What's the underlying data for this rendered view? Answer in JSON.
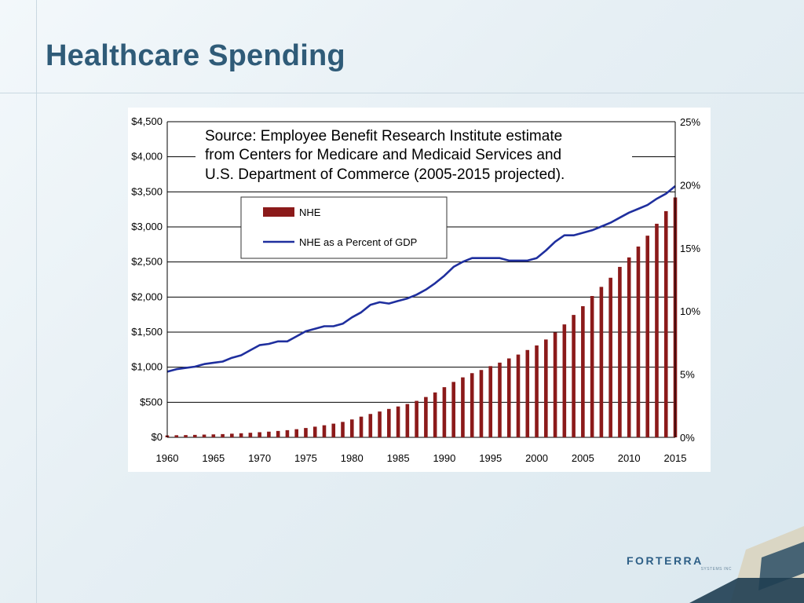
{
  "slide": {
    "title": "Healthcare Spending"
  },
  "logo": {
    "name": "FORTERRA",
    "sub": "SYSTEMS INC"
  },
  "colors": {
    "title": "#2f5b78",
    "bar": "#8b1a1a",
    "line": "#1f2f9e",
    "logo": "#2d5f86"
  },
  "chart_data": {
    "type": "bar",
    "source_note": [
      "Source: Employee Benefit Research Institute estimate",
      "from Centers for Medicare and Medicaid Services and",
      "U.S. Department of Commerce (2005-2015 projected)."
    ],
    "x": [
      1960,
      1961,
      1962,
      1963,
      1964,
      1965,
      1966,
      1967,
      1968,
      1969,
      1970,
      1971,
      1972,
      1973,
      1974,
      1975,
      1976,
      1977,
      1978,
      1979,
      1980,
      1981,
      1982,
      1983,
      1984,
      1985,
      1986,
      1987,
      1988,
      1989,
      1990,
      1991,
      1992,
      1993,
      1994,
      1995,
      1996,
      1997,
      1998,
      1999,
      2000,
      2001,
      2002,
      2003,
      2004,
      2005,
      2006,
      2007,
      2008,
      2009,
      2010,
      2011,
      2012,
      2013,
      2014,
      2015
    ],
    "x_ticks": [
      "1960",
      "1965",
      "1970",
      "1975",
      "1980",
      "1985",
      "1990",
      "1995",
      "2000",
      "2005",
      "2010",
      "2015"
    ],
    "y_left_ticks": [
      "$0",
      "$500",
      "$1,000",
      "$1,500",
      "$2,000",
      "$2,500",
      "$3,000",
      "$3,500",
      "$4,000",
      "$4,500"
    ],
    "y_left_range": [
      0,
      4500
    ],
    "y_right_ticks": [
      "0%",
      "5%",
      "10%",
      "15%",
      "20%",
      "25%"
    ],
    "y_right_range": [
      0,
      25
    ],
    "grid": true,
    "legend_position": "top-left",
    "series": [
      {
        "name": "NHE",
        "type": "bar",
        "axis": "left",
        "values": [
          27,
          30,
          32,
          35,
          39,
          42,
          46,
          52,
          58,
          65,
          73,
          81,
          91,
          102,
          116,
          133,
          152,
          172,
          195,
          220,
          255,
          295,
          333,
          368,
          405,
          440,
          475,
          520,
          575,
          640,
          715,
          790,
          855,
          915,
          960,
          1015,
          1065,
          1125,
          1180,
          1245,
          1310,
          1395,
          1495,
          1610,
          1745,
          1870,
          2015,
          2145,
          2275,
          2430,
          2565,
          2720,
          2875,
          3045,
          3225,
          3420
        ]
      },
      {
        "name": "NHE as a Percent of GDP",
        "type": "line",
        "axis": "right",
        "values": [
          5.2,
          5.4,
          5.5,
          5.6,
          5.8,
          5.9,
          6.0,
          6.3,
          6.5,
          6.9,
          7.3,
          7.4,
          7.6,
          7.6,
          8.0,
          8.4,
          8.6,
          8.8,
          8.8,
          9.0,
          9.5,
          9.9,
          10.5,
          10.7,
          10.6,
          10.8,
          11.0,
          11.3,
          11.7,
          12.2,
          12.8,
          13.5,
          13.9,
          14.2,
          14.2,
          14.2,
          14.2,
          14.0,
          14.0,
          14.0,
          14.2,
          14.8,
          15.5,
          16.0,
          16.0,
          16.2,
          16.4,
          16.7,
          17.0,
          17.4,
          17.8,
          18.1,
          18.4,
          18.9,
          19.3,
          19.9
        ]
      }
    ]
  }
}
